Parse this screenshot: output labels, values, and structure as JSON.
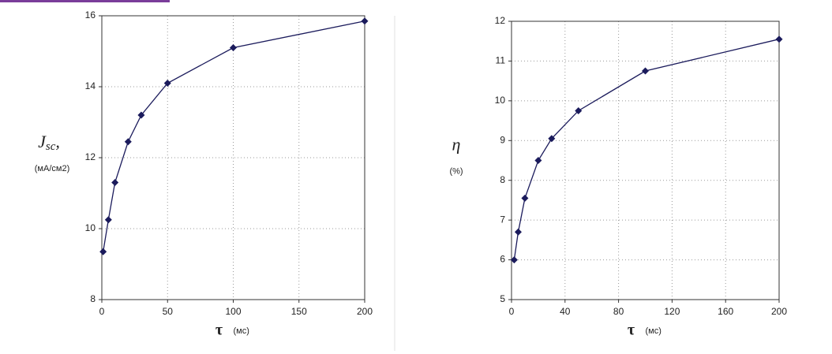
{
  "chart_data": [
    {
      "type": "line",
      "x": [
        1,
        5,
        10,
        20,
        30,
        50,
        100,
        200
      ],
      "series": [
        {
          "color": "#1b1b5c",
          "values": [
            9.35,
            10.25,
            11.3,
            12.45,
            13.2,
            14.1,
            15.1,
            15.85
          ]
        }
      ],
      "xlim": [
        0,
        200
      ],
      "xticks": [
        0,
        50,
        100,
        150,
        200
      ],
      "ylim": [
        8,
        16
      ],
      "yticks": [
        8,
        10,
        12,
        14,
        16
      ],
      "grid": true,
      "xlabel": {
        "symbol": "τ",
        "unit": "(мс)"
      },
      "ylabel": {
        "symbol": "J",
        "subscript": "sc",
        "suffix": ",",
        "unit": "(мА/см2)"
      }
    },
    {
      "type": "line",
      "x": [
        2,
        5,
        10,
        20,
        30,
        50,
        100,
        200
      ],
      "series": [
        {
          "color": "#1b1b5c",
          "values": [
            6.0,
            6.7,
            7.55,
            8.5,
            9.05,
            9.75,
            10.75,
            11.55
          ]
        }
      ],
      "xlim": [
        0,
        200
      ],
      "xticks": [
        0,
        40,
        80,
        120,
        160,
        200
      ],
      "ylim": [
        5,
        12
      ],
      "yticks": [
        5,
        6,
        7,
        8,
        9,
        10,
        11,
        12
      ],
      "grid": true,
      "xlabel": {
        "symbol": "τ",
        "unit": "(мс)"
      },
      "ylabel": {
        "symbol": "η",
        "unit": "(%)"
      }
    }
  ]
}
